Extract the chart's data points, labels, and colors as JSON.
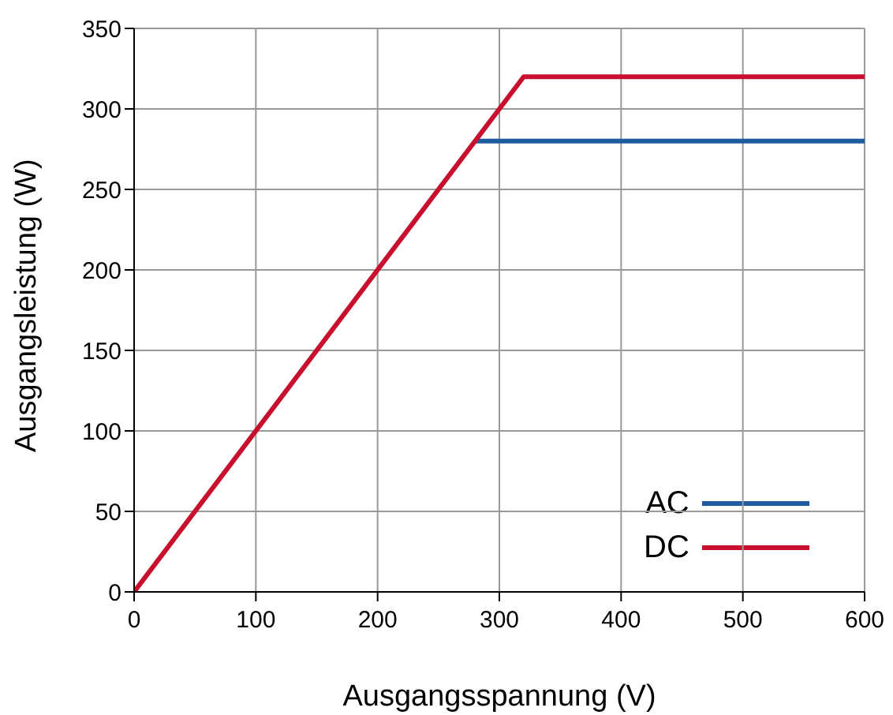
{
  "chart_data": {
    "type": "line",
    "xlabel": "Ausgangsspannung (V)",
    "ylabel": "Ausgangsleistung (W)",
    "xlim": [
      0,
      600
    ],
    "xticks": [
      0,
      100,
      200,
      300,
      400,
      500,
      600
    ],
    "ylim": [
      0,
      350
    ],
    "yticks": [
      0,
      50,
      100,
      150,
      200,
      250,
      300,
      350
    ],
    "grid": true,
    "legend": "bottom right",
    "marker": "none",
    "line_style": "solid",
    "series": [
      {
        "name": "AC",
        "color": "#1f5ba0",
        "x": [
          280,
          600
        ],
        "values": [
          280,
          280
        ]
      },
      {
        "name": "DC",
        "color": "#c8102e",
        "x": [
          0,
          320,
          600
        ],
        "values": [
          0,
          320,
          320
        ]
      }
    ]
  }
}
